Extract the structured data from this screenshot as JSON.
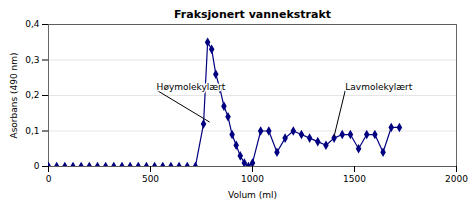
{
  "chart_data": {
    "type": "line",
    "title": "Fraksjonert vannekstrakt",
    "xlabel": "Volum (ml)",
    "ylabel": "Asorbans (490 nm)",
    "xlim": [
      0,
      2000
    ],
    "ylim": [
      0,
      0.4
    ],
    "xticks": [
      0,
      500,
      1000,
      1500,
      2000
    ],
    "yticks": [
      0,
      {
        "value": 0.1,
        "label": "0,1"
      },
      {
        "value": 0.2,
        "label": "0,2"
      },
      {
        "value": 0.3,
        "label": "0,3"
      },
      {
        "value": 0.4,
        "label": "0,4"
      }
    ],
    "grid": "y",
    "color": "#000080",
    "marker": "diamond",
    "x": [
      0,
      40,
      80,
      120,
      160,
      200,
      240,
      280,
      320,
      360,
      400,
      440,
      480,
      520,
      560,
      600,
      640,
      680,
      720,
      760,
      780,
      800,
      820,
      840,
      860,
      880,
      900,
      920,
      940,
      960,
      980,
      1000,
      1040,
      1080,
      1120,
      1160,
      1200,
      1240,
      1280,
      1320,
      1360,
      1400,
      1440,
      1480,
      1520,
      1560,
      1600,
      1640,
      1680,
      1720
    ],
    "values": [
      0.0,
      0.0,
      0.0,
      0.0,
      0.0,
      0.0,
      0.0,
      0.0,
      0.0,
      0.0,
      0.0,
      0.0,
      0.0,
      0.0,
      0.0,
      0.0,
      0.0,
      0.0,
      0.0,
      0.12,
      0.35,
      0.33,
      0.26,
      0.22,
      0.17,
      0.14,
      0.09,
      0.06,
      0.03,
      0.01,
      0.0,
      0.01,
      0.1,
      0.1,
      0.04,
      0.08,
      0.1,
      0.09,
      0.08,
      0.07,
      0.06,
      0.08,
      0.09,
      0.09,
      0.05,
      0.09,
      0.09,
      0.04,
      0.11,
      0.11
    ],
    "annotations": [
      {
        "text": "Høymolekylært",
        "x": 790,
        "y": 0.125,
        "text_x": 530,
        "text_y": 0.215
      },
      {
        "text": "Lavmolekylært",
        "x": 1400,
        "y": 0.085,
        "text_x": 1455,
        "text_y": 0.215
      }
    ]
  }
}
